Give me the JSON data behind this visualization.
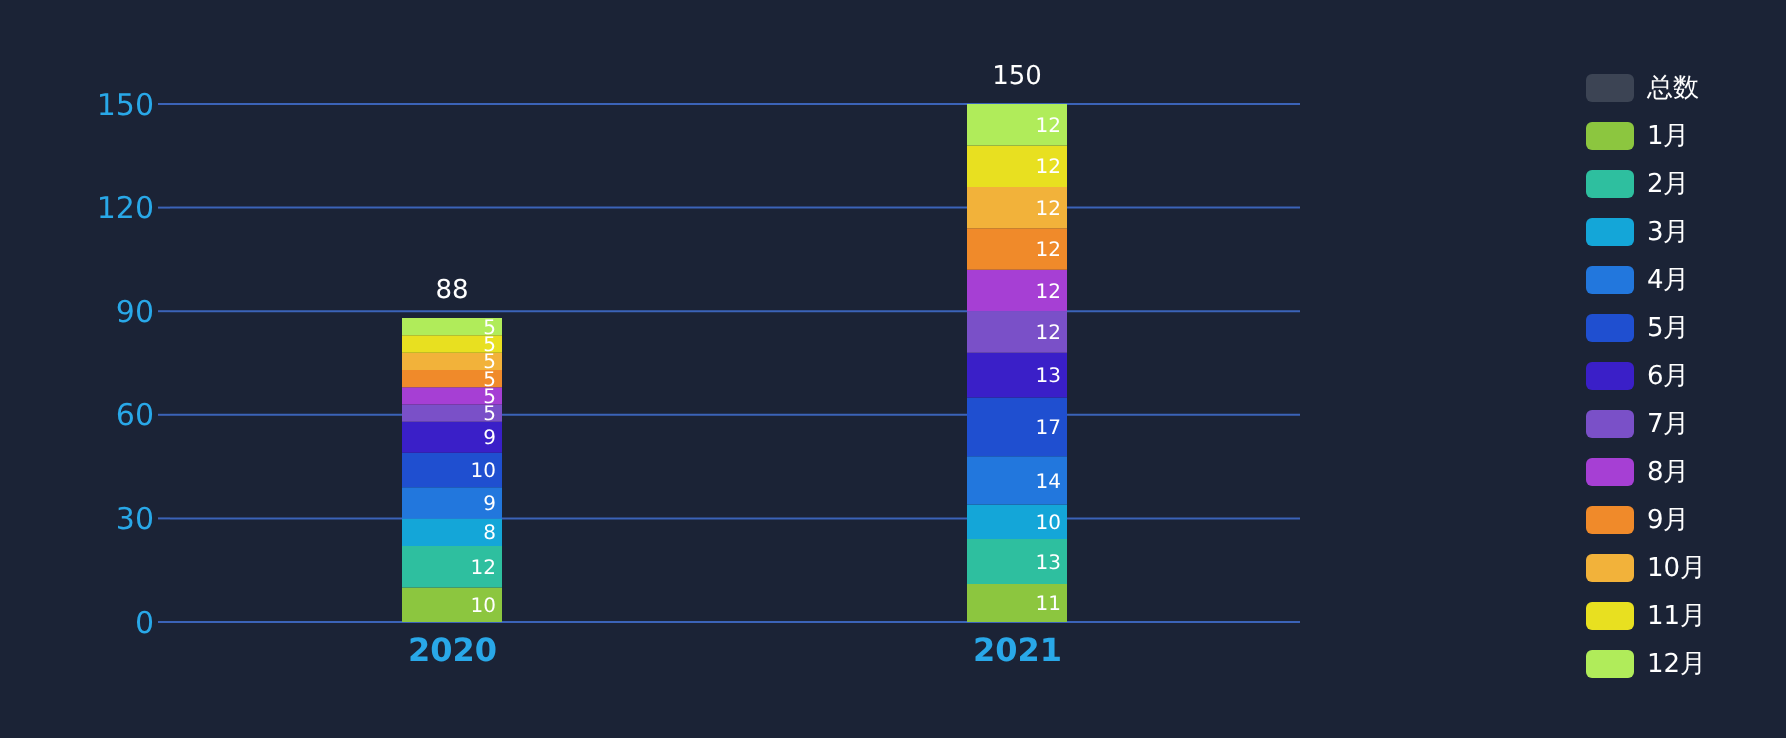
{
  "chart_data": {
    "type": "bar",
    "stacked": true,
    "categories": [
      "2020",
      "2021"
    ],
    "series": [
      {
        "name": "1月",
        "color": "#8cc63f",
        "values": [
          10,
          11
        ]
      },
      {
        "name": "2月",
        "color": "#2ebf9f",
        "values": [
          12,
          13
        ]
      },
      {
        "name": "3月",
        "color": "#14a6d8",
        "values": [
          8,
          10
        ]
      },
      {
        "name": "4月",
        "color": "#2277dd",
        "values": [
          9,
          14
        ]
      },
      {
        "name": "5月",
        "color": "#1f4fd0",
        "values": [
          10,
          17
        ]
      },
      {
        "name": "6月",
        "color": "#3a1fc8",
        "values": [
          9,
          13
        ]
      },
      {
        "name": "7月",
        "color": "#7a50c8",
        "values": [
          5,
          12
        ]
      },
      {
        "name": "8月",
        "color": "#a63fd4",
        "values": [
          5,
          12
        ]
      },
      {
        "name": "9月",
        "color": "#f08a2a",
        "values": [
          5,
          12
        ]
      },
      {
        "name": "10月",
        "color": "#f2b23a",
        "values": [
          5,
          12
        ]
      },
      {
        "name": "11月",
        "color": "#e8e020",
        "values": [
          5,
          12
        ]
      },
      {
        "name": "12月",
        "color": "#b0ec5a",
        "values": [
          5,
          12
        ]
      }
    ],
    "totals": [
      "88",
      "150"
    ],
    "legend_title": "总数",
    "ylim": [
      0,
      150
    ],
    "yticks": [
      0,
      30,
      60,
      90,
      120,
      150
    ],
    "grid": "y",
    "legend": "right",
    "data_labels": true
  }
}
